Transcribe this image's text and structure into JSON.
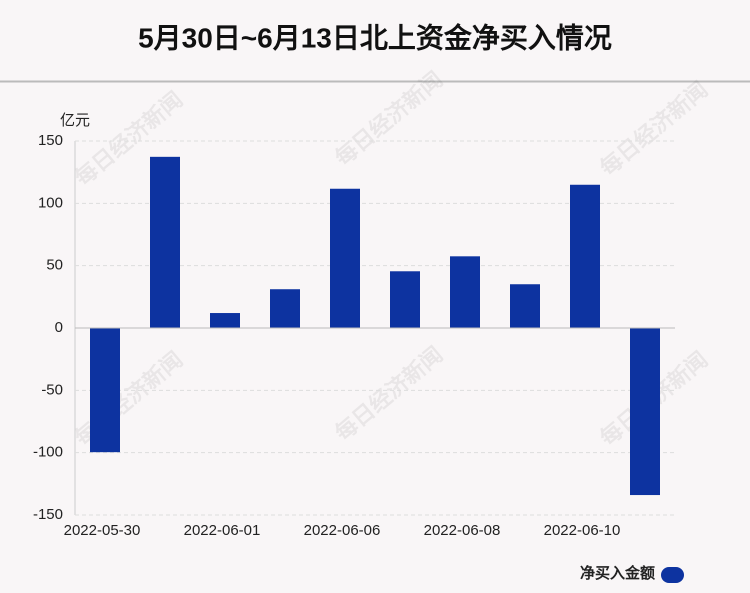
{
  "chart_data": {
    "type": "bar",
    "title": "5月30日~6月13日北上资金净买入情况",
    "y_label": "亿元",
    "watermark": "每日经济新闻",
    "categories": [
      "2022-05-30",
      null,
      "2022-06-01",
      null,
      "2022-06-06",
      null,
      "2022-06-08",
      null,
      "2022-06-10",
      null
    ],
    "series": [
      {
        "name": "净买入金额",
        "color": "#0d33a0",
        "values": [
          -99.6,
          137.3,
          12,
          31.1,
          111.7,
          45.5,
          57.5,
          35.1,
          114.9,
          -134
        ]
      }
    ],
    "ylim": [
      -150,
      150
    ],
    "yticks": [
      -150,
      -100,
      -50,
      0,
      50,
      100,
      150
    ],
    "grid": true,
    "legend": "bottom-right"
  }
}
